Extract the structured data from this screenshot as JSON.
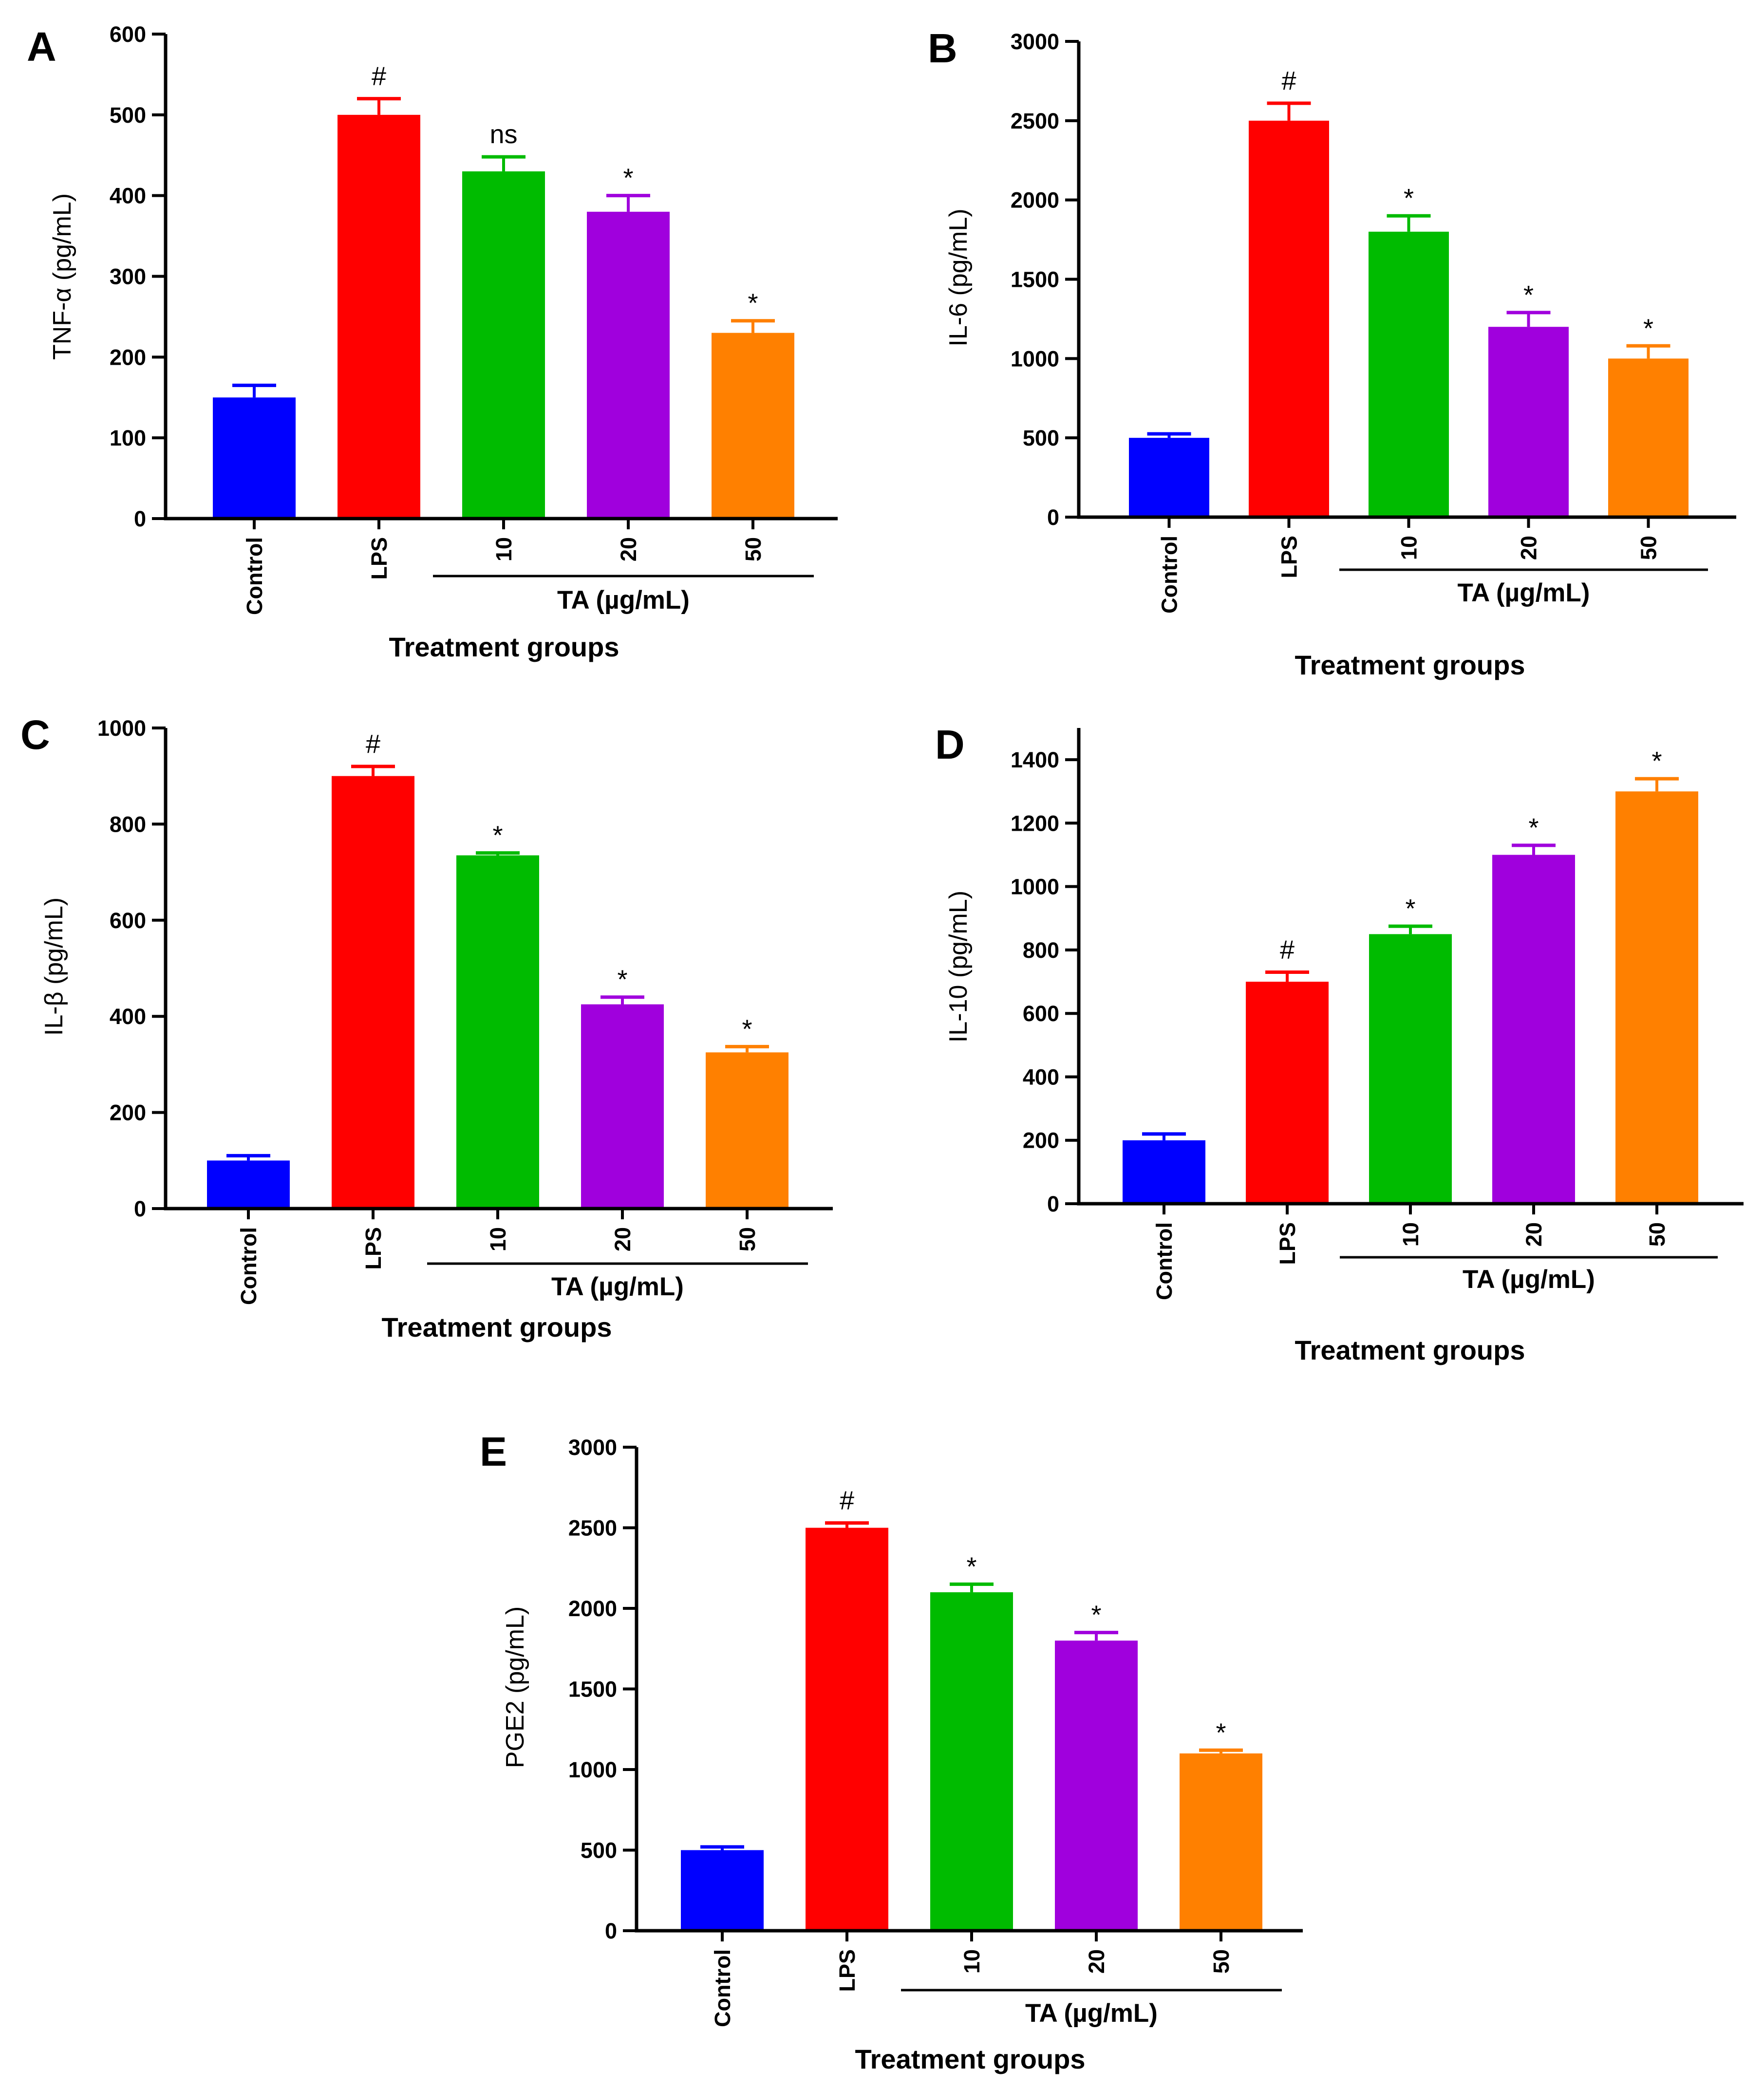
{
  "chart_data": [
    {
      "panel": "A",
      "type": "bar",
      "categories": [
        "Control",
        "LPS",
        "10",
        "20",
        "50"
      ],
      "values": [
        150,
        500,
        430,
        380,
        230
      ],
      "errors": [
        15,
        20,
        18,
        20,
        15
      ],
      "annotations": [
        "",
        "#",
        "ns",
        "*",
        "*"
      ],
      "colors": [
        "#0000ff",
        "#ff0000",
        "#00bb00",
        "#a000dd",
        "#ff8000"
      ],
      "ylabel": "TNF-α (pg/mL)",
      "xlabel": "Treatment groups",
      "group_label": "TA (µg/mL)",
      "ylim": [
        0,
        600
      ],
      "yticks": [
        0,
        100,
        200,
        300,
        400,
        500,
        600
      ]
    },
    {
      "panel": "B",
      "type": "bar",
      "categories": [
        "Control",
        "LPS",
        "10",
        "20",
        "50"
      ],
      "values": [
        500,
        2500,
        1800,
        1200,
        1000
      ],
      "errors": [
        25,
        110,
        100,
        90,
        80
      ],
      "annotations": [
        "",
        "#",
        "*",
        "*",
        "*"
      ],
      "colors": [
        "#0000ff",
        "#ff0000",
        "#00bb00",
        "#a000dd",
        "#ff8000"
      ],
      "ylabel": "IL-6 (pg/mL)",
      "xlabel": "Treatment groups",
      "group_label": "TA (µg/mL)",
      "ylim": [
        0,
        3000
      ],
      "yticks": [
        0,
        500,
        1000,
        1500,
        2000,
        2500,
        3000
      ]
    },
    {
      "panel": "C",
      "type": "bar",
      "categories": [
        "Control",
        "LPS",
        "10",
        "20",
        "50"
      ],
      "values": [
        100,
        900,
        735,
        425,
        325
      ],
      "errors": [
        10,
        20,
        5,
        15,
        12
      ],
      "annotations": [
        "",
        "#",
        "*",
        "*",
        "*"
      ],
      "colors": [
        "#0000ff",
        "#ff0000",
        "#00bb00",
        "#a000dd",
        "#ff8000"
      ],
      "ylabel": "IL-β (pg/mL)",
      "xlabel": "Treatment groups",
      "group_label": "TA (µg/mL)",
      "ylim": [
        0,
        1000
      ],
      "yticks": [
        0,
        200,
        400,
        600,
        800,
        1000
      ]
    },
    {
      "panel": "D",
      "type": "bar",
      "categories": [
        "Control",
        "LPS",
        "10",
        "20",
        "50"
      ],
      "values": [
        200,
        700,
        850,
        1100,
        1300
      ],
      "errors": [
        20,
        30,
        25,
        30,
        40
      ],
      "annotations": [
        "",
        "#",
        "*",
        "*",
        "*"
      ],
      "colors": [
        "#0000ff",
        "#ff0000",
        "#00bb00",
        "#a000dd",
        "#ff8000"
      ],
      "ylabel": "IL-10 (pg/mL)",
      "xlabel": "Treatment groups",
      "group_label": "TA (µg/mL)",
      "ylim": [
        0,
        1500
      ],
      "yticks": [
        0,
        200,
        400,
        600,
        800,
        1000,
        1200,
        1400
      ]
    },
    {
      "panel": "E",
      "type": "bar",
      "categories": [
        "Control",
        "LPS",
        "10",
        "20",
        "50"
      ],
      "values": [
        500,
        2500,
        2100,
        1800,
        1100
      ],
      "errors": [
        20,
        30,
        50,
        50,
        20
      ],
      "annotations": [
        "",
        "#",
        "*",
        "*",
        "*"
      ],
      "colors": [
        "#0000ff",
        "#ff0000",
        "#00bb00",
        "#a000dd",
        "#ff8000"
      ],
      "ylabel": "PGE2 (pg/mL)",
      "xlabel": "Treatment groups",
      "group_label": "TA (µg/mL)",
      "ylim": [
        0,
        3000
      ],
      "yticks": [
        0,
        500,
        1000,
        1500,
        2000,
        2500,
        3000
      ]
    }
  ]
}
